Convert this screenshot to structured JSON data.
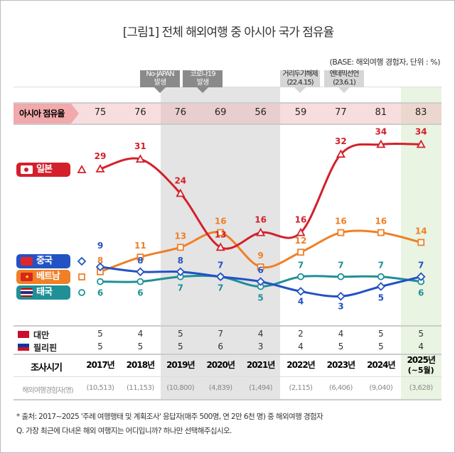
{
  "title": "[그림1] 전체 해외여행 중 아시아 국가 점유율",
  "base_note": "(BASE: 해외여행 경험자, 단위 : %)",
  "events": [
    {
      "line1": "No-JAPAN",
      "line2": "발생",
      "year": "2019"
    },
    {
      "line1": "코로나19",
      "line2": "발생",
      "year": "2020"
    },
    {
      "line1": "거리두기해제",
      "line2": "(22.4.15)",
      "year": "2022"
    },
    {
      "line1": "엔데믹선언",
      "line2": "(23.6.1)",
      "year": "2023"
    }
  ],
  "colors": {
    "japan": "#d3202b",
    "china": "#2352c4",
    "vietnam": "#f07f26",
    "thailand": "#1f9097",
    "share_band": "#f7d9da",
    "covid_shade": "#e4e4e4",
    "current_shade": "#e9f4e2"
  },
  "asia_share": {
    "label": "아시아 점유율",
    "values": [
      75,
      76,
      76,
      69,
      56,
      59,
      77,
      81,
      83
    ]
  },
  "chart_data": {
    "type": "line",
    "categories": [
      "2017년",
      "2018년",
      "2019년",
      "2020년",
      "2021년",
      "2022년",
      "2023년",
      "2024년",
      "2025년 (~5월)"
    ],
    "series": [
      {
        "name": "일본",
        "key": "japan",
        "marker": "triangle",
        "values": [
          29,
          31,
          24,
          13,
          16,
          16,
          32,
          34,
          34
        ]
      },
      {
        "name": "중국",
        "key": "china",
        "marker": "diamond",
        "values": [
          9,
          8,
          8,
          7,
          6,
          4,
          3,
          5,
          7
        ]
      },
      {
        "name": "베트남",
        "key": "vietnam",
        "marker": "square",
        "values": [
          8,
          11,
          13,
          16,
          9,
          12,
          16,
          16,
          14
        ]
      },
      {
        "name": "태국",
        "key": "thailand",
        "marker": "circle",
        "values": [
          6,
          6,
          7,
          7,
          5,
          7,
          7,
          7,
          6
        ]
      }
    ],
    "shaded_ranges": [
      {
        "from": "2019년",
        "to": "2022년",
        "meaning": "covid"
      },
      {
        "from": "2025년 (~5월)",
        "to": "2025년 (~5월)",
        "meaning": "current"
      }
    ]
  },
  "other_rows": [
    {
      "name": "대만",
      "values": [
        5,
        4,
        5,
        7,
        4,
        2,
        4,
        5,
        5
      ]
    },
    {
      "name": "필리핀",
      "values": [
        5,
        5,
        5,
        6,
        3,
        4,
        5,
        5,
        4
      ]
    }
  ],
  "period": {
    "label": "조사시기",
    "years": [
      "2017년",
      "2018년",
      "2019년",
      "2020년",
      "2021년",
      "2022년",
      "2023년",
      "2024년",
      "2025년"
    ],
    "last_sub": "(~5월)"
  },
  "respondents": {
    "label": "해외여행경험자(명)",
    "values": [
      "(10,513)",
      "(11,153)",
      "(10,800)",
      "(4,839)",
      "(1,494)",
      "(2,115)",
      "(6,406)",
      "(9,040)",
      "(3,628)"
    ]
  },
  "footnotes": [
    "* 출처: 2017~2025 '주례 여행행태 및 계획조사' 응답자(매주 500명, 연 2만 6천 명) 중 해외여행 경험자",
    "Q. 가장 최근에 다녀온 해외 여행지는 어디입니까? 하나만 선택해주십시오."
  ]
}
